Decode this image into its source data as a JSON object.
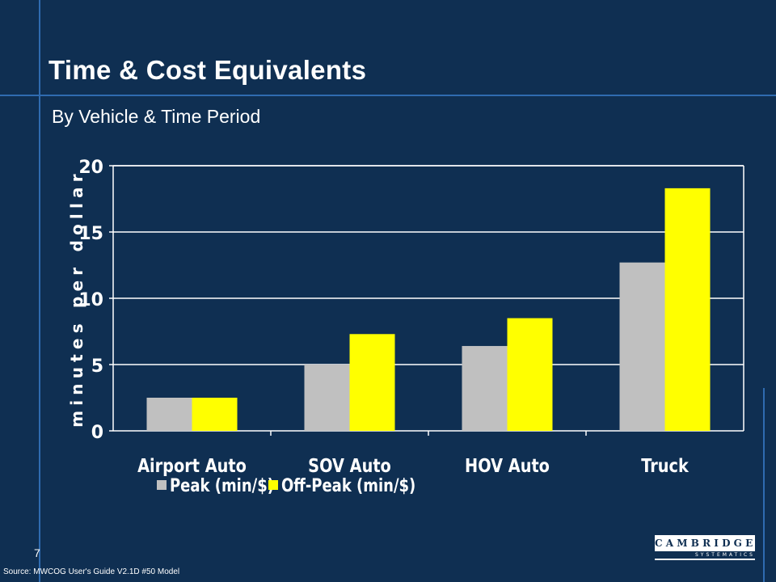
{
  "title": "Time & Cost Equivalents",
  "subtitle": "By Vehicle & Time Period",
  "page_number": "7",
  "source": "Source: MWCOG User's Guide V2.1D #50 Model",
  "logo": {
    "main": "CAMBRIDGE",
    "sub": "SYSTEMATICS"
  },
  "colors": {
    "background": "#0f2f52",
    "accent_line": "#2f6bb0",
    "peak": "#c0c0c0",
    "offpeak": "#ffff00"
  },
  "chart_data": {
    "type": "bar",
    "title": "",
    "xlabel": "",
    "ylabel": "minutes per dollar",
    "categories": [
      "Airport Auto",
      "SOV Auto",
      "HOV Auto",
      "Truck"
    ],
    "series": [
      {
        "name": "Peak (min/$)",
        "values": [
          2.5,
          5.0,
          6.4,
          12.7
        ],
        "color": "#c0c0c0"
      },
      {
        "name": "Off-Peak (min/$)",
        "values": [
          2.5,
          7.3,
          8.5,
          18.3
        ],
        "color": "#ffff00"
      }
    ],
    "ylim": [
      0,
      20
    ],
    "yticks": [
      0,
      5,
      10,
      15,
      20
    ],
    "grid": true,
    "legend_position": "bottom"
  }
}
